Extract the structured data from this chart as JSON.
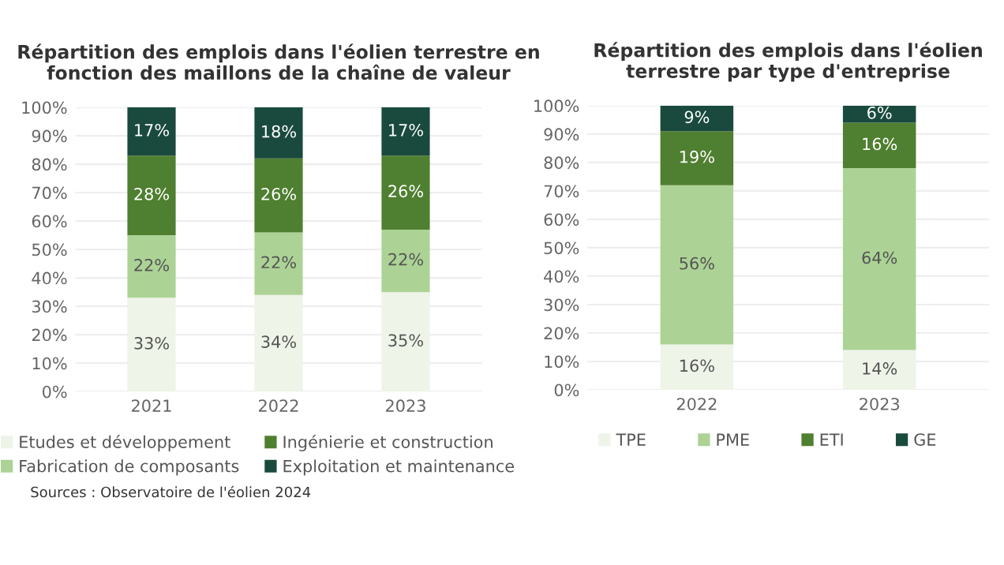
{
  "chart_data": [
    {
      "type": "bar",
      "title": "Répartition des emplois dans l'éolien terrestre en fonction des maillons de la chaîne de valeur",
      "categories": [
        "2021",
        "2022",
        "2023"
      ],
      "stacked": true,
      "ylim": [
        0,
        100
      ],
      "yticks": [
        {
          "value": 0,
          "label": "0%"
        },
        {
          "value": 10,
          "label": "10%"
        },
        {
          "value": 20,
          "label": "20%"
        },
        {
          "value": 30,
          "label": "30%"
        },
        {
          "value": 40,
          "label": "40%"
        },
        {
          "value": 50,
          "label": "50%"
        },
        {
          "value": 60,
          "label": "60%"
        },
        {
          "value": 70,
          "label": "70%"
        },
        {
          "value": 80,
          "label": "80%"
        },
        {
          "value": 90,
          "label": "90%"
        },
        {
          "value": 100,
          "label": "100%"
        }
      ],
      "grid": "y",
      "legend": "bottom",
      "series": [
        {
          "name": "Etudes et développement",
          "color": "#eef4e8",
          "values": [
            33,
            34,
            35
          ],
          "value_labels": [
            "33%",
            "34%",
            "35%"
          ]
        },
        {
          "name": "Fabrication de composants",
          "color": "#acd395",
          "values": [
            22,
            22,
            22
          ],
          "value_labels": [
            "22%",
            "22%",
            "22%"
          ]
        },
        {
          "name": "Ingénierie et construction",
          "color": "#4f7f30",
          "values": [
            28,
            26,
            26
          ],
          "value_labels": [
            "28%",
            "26%",
            "26%"
          ]
        },
        {
          "name": "Exploitation et maintenance",
          "color": "#1a4a3e",
          "values": [
            17,
            18,
            17
          ],
          "value_labels": [
            "17%",
            "18%",
            "17%"
          ]
        }
      ],
      "annotations": [
        "Sources : Observatoire de l'éolien 2024"
      ]
    },
    {
      "type": "bar",
      "title": "Répartition des emplois dans l'éolien terrestre par type d'entreprise",
      "categories": [
        "2022",
        "2023"
      ],
      "stacked": true,
      "ylim": [
        0,
        100
      ],
      "yticks": [
        {
          "value": 0,
          "label": "0%"
        },
        {
          "value": 10,
          "label": "10%"
        },
        {
          "value": 20,
          "label": "20%"
        },
        {
          "value": 30,
          "label": "30%"
        },
        {
          "value": 40,
          "label": "40%"
        },
        {
          "value": 50,
          "label": "50%"
        },
        {
          "value": 60,
          "label": "60%"
        },
        {
          "value": 70,
          "label": "70%"
        },
        {
          "value": 80,
          "label": "80%"
        },
        {
          "value": 90,
          "label": "90%"
        },
        {
          "value": 100,
          "label": "100%"
        }
      ],
      "grid": "y",
      "legend": "bottom",
      "series": [
        {
          "name": "TPE",
          "color": "#eef4e8",
          "values": [
            16,
            14
          ],
          "value_labels": [
            "16%",
            "14%"
          ]
        },
        {
          "name": "PME",
          "color": "#acd395",
          "values": [
            56,
            64
          ],
          "value_labels": [
            "56%",
            "64%"
          ]
        },
        {
          "name": "ETI",
          "color": "#4f7f30",
          "values": [
            19,
            16
          ],
          "value_labels": [
            "19%",
            "16%"
          ]
        },
        {
          "name": "GE",
          "color": "#1a4a3e",
          "values": [
            9,
            6
          ],
          "value_labels": [
            "9%",
            "6%"
          ]
        }
      ]
    }
  ]
}
